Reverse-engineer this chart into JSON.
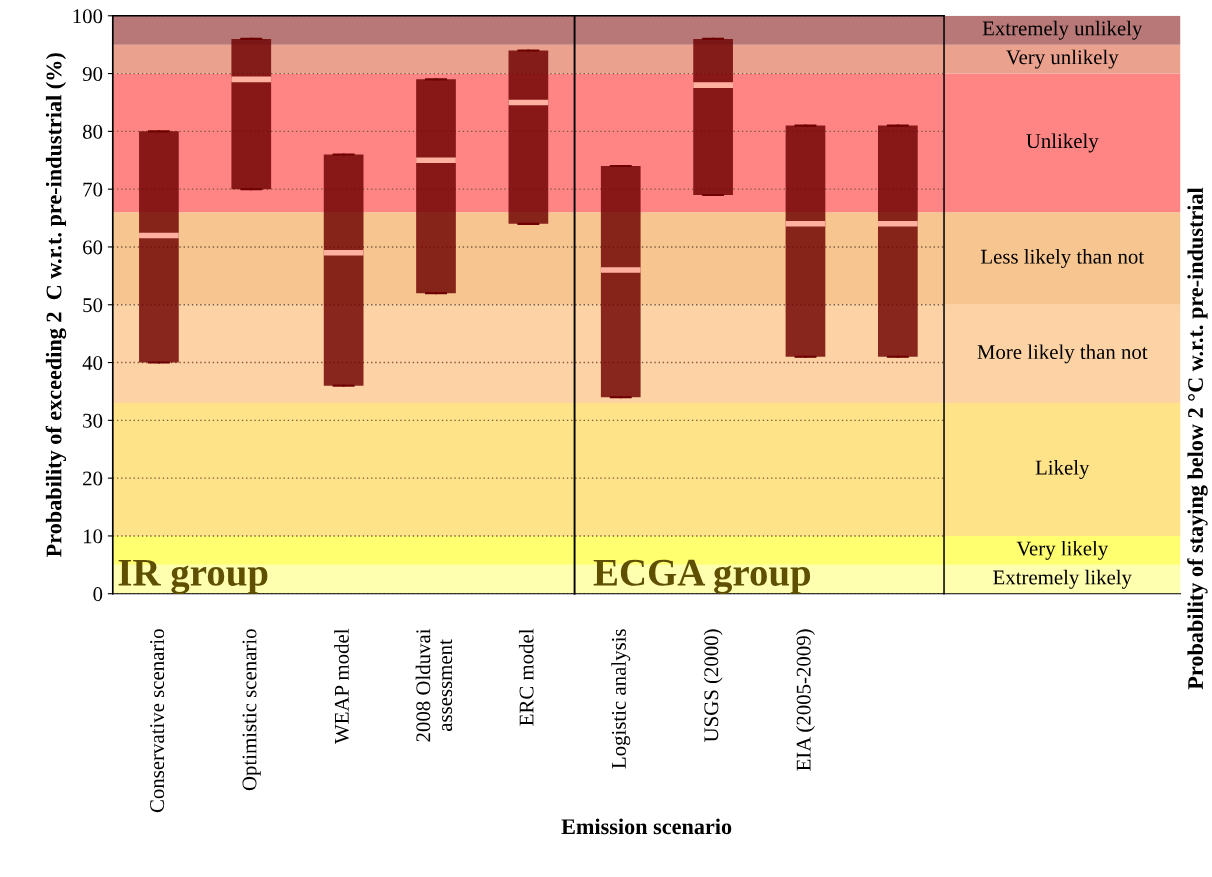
{
  "chart_data": {
    "type": "box",
    "xlabel": "Emission scenario",
    "ylabel": "Probability of exceeding 2  C w.r.t. pre-industrial (%)",
    "categories": [
      "Conservative scenario",
      "Optimistic scenario",
      "WEAP model",
      "2008 Olduvai\nassessment",
      "ERC model",
      "Logistic analysis",
      "USGS (2000)",
      "EIA (2005-2009)",
      null
    ],
    "series": [
      {
        "color": "#6e0000",
        "boxes": [
          {
            "low": 40,
            "q1": 40,
            "median": 62,
            "q3": 80,
            "high": 80
          },
          {
            "low": 70,
            "q1": 70,
            "median": 89,
            "q3": 96,
            "high": 96
          },
          {
            "low": 36,
            "q1": 36,
            "median": 59,
            "q3": 76,
            "high": 76
          },
          {
            "low": 52,
            "q1": 52,
            "median": 75,
            "q3": 89,
            "high": 89
          },
          {
            "low": 64,
            "q1": 64,
            "median": 85,
            "q3": 94,
            "high": 94
          },
          {
            "low": 34,
            "q1": 34,
            "median": 56,
            "q3": 74,
            "high": 74
          },
          {
            "low": 69,
            "q1": 69,
            "median": 88,
            "q3": 96,
            "high": 96
          },
          {
            "low": 41,
            "q1": 41,
            "median": 64,
            "q3": 81,
            "high": 81
          },
          {
            "low": 41,
            "q1": 41,
            "median": 64,
            "q3": 81,
            "high": 81
          }
        ]
      }
    ],
    "ylim": [
      0,
      100
    ],
    "yticks": [
      0,
      10,
      20,
      30,
      40,
      50,
      60,
      70,
      80,
      90,
      100
    ],
    "grid": "y",
    "bands": [
      {
        "axis": "y",
        "from": 0,
        "to": 5,
        "label": "Extremely likely",
        "color": "#ffffb0"
      },
      {
        "axis": "y",
        "from": 5,
        "to": 10,
        "label": "Very likely",
        "color": "#ffff70"
      },
      {
        "axis": "y",
        "from": 10,
        "to": 33,
        "label": "Likely",
        "color": "#ffe388"
      },
      {
        "axis": "y",
        "from": 33,
        "to": 50,
        "label": "More likely than not",
        "color": "#fdd3a5"
      },
      {
        "axis": "y",
        "from": 50,
        "to": 66,
        "label": "Less likely than not",
        "color": "#f7c690"
      },
      {
        "axis": "y",
        "from": 66,
        "to": 90,
        "label": "Unlikely",
        "color": "#ff8585"
      },
      {
        "axis": "y",
        "from": 90,
        "to": 95,
        "label": "Very unlikely",
        "color": "#eaa28e"
      },
      {
        "axis": "y",
        "from": 95,
        "to": 100,
        "label": "Extremely unlikely",
        "color": "#b87878"
      }
    ],
    "annotations": [
      "IR group",
      "ECGA group",
      "Probability of staying below 2 °C w.r.t. pre-industrial"
    ]
  }
}
